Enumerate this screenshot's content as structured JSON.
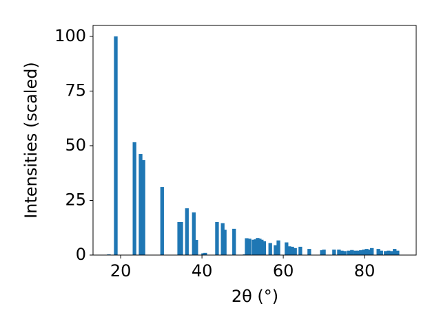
{
  "chart_data": {
    "type": "bar",
    "xlabel": "2θ (°)",
    "ylabel": "Intensities (scaled)",
    "x": [
      17.1,
      18.8,
      23.4,
      24.9,
      25.6,
      30.2,
      34.4,
      34.9,
      36.3,
      38.0,
      38.6,
      40.3,
      40.8,
      43.7,
      45.1,
      45.6,
      47.9,
      50.5,
      51.0,
      51.7,
      52.7,
      53.2,
      53.7,
      54.2,
      54.7,
      55.3,
      56.8,
      58.1,
      58.8,
      60.8,
      61.5,
      62.2,
      62.9,
      64.2,
      66.4,
      69.5,
      70.0,
      72.5,
      73.7,
      74.4,
      75.1,
      76.1,
      76.9,
      77.8,
      78.5,
      79.1,
      79.8,
      80.5,
      81.2,
      81.8,
      83.4,
      84.1,
      85.2,
      85.9,
      86.6,
      87.4,
      88.1
    ],
    "values": [
      0.3,
      100,
      51.6,
      46.2,
      43.4,
      31.1,
      15.1,
      15.1,
      21.4,
      19.5,
      6.9,
      0.8,
      1,
      15.1,
      14.6,
      11.6,
      12,
      0.3,
      7.7,
      7.5,
      7,
      7.2,
      7.8,
      7.5,
      7,
      6.3,
      5.5,
      4.5,
      6.7,
      5.8,
      4,
      3.8,
      3.2,
      3.8,
      2.8,
      2.2,
      2.5,
      2.5,
      2.5,
      2,
      1.8,
      2,
      2.3,
      2,
      2,
      2.2,
      2.5,
      2.8,
      2.5,
      3.2,
      2.8,
      2,
      1.8,
      2,
      1.8,
      2.8,
      2
    ],
    "color": "#1f77b4",
    "xlim": [
      13.2,
      92.7
    ],
    "ylim": [
      0,
      105
    ],
    "xticks": [
      20,
      40,
      60,
      80
    ],
    "yticks": [
      0,
      25,
      50,
      75,
      100
    ],
    "grid": false
  }
}
